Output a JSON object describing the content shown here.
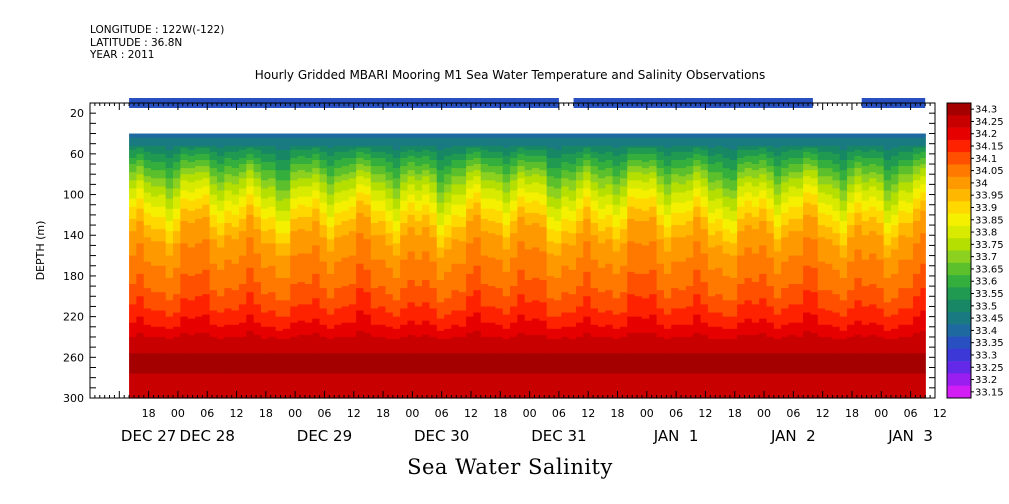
{
  "header": {
    "longitude": "LONGITUDE : 122W(-122)",
    "latitude": "LATITUDE : 36.8N",
    "year": "YEAR : 2011"
  },
  "chart_data": {
    "type": "heatmap",
    "title": "Hourly Gridded MBARI Mooring M1 Sea Water Temperature and Salinity Observations",
    "variable_label": "Sea Water Salinity",
    "ylabel": "DEPTH (m)",
    "ylim": [
      300,
      10
    ],
    "y_ticks": [
      20,
      60,
      100,
      140,
      180,
      220,
      260,
      300
    ],
    "x_range_hours": [
      -18,
      155
    ],
    "x_ticks": [
      {
        "h": -6,
        "label": "18"
      },
      {
        "h": 0,
        "label": "00"
      },
      {
        "h": 6,
        "label": "06"
      },
      {
        "h": 12,
        "label": "12"
      },
      {
        "h": 18,
        "label": "18"
      },
      {
        "h": 24,
        "label": "00"
      },
      {
        "h": 30,
        "label": "06"
      },
      {
        "h": 36,
        "label": "12"
      },
      {
        "h": 42,
        "label": "18"
      },
      {
        "h": 48,
        "label": "00"
      },
      {
        "h": 54,
        "label": "06"
      },
      {
        "h": 60,
        "label": "12"
      },
      {
        "h": 66,
        "label": "18"
      },
      {
        "h": 72,
        "label": "00"
      },
      {
        "h": 78,
        "label": "06"
      },
      {
        "h": 84,
        "label": "12"
      },
      {
        "h": 90,
        "label": "18"
      },
      {
        "h": 96,
        "label": "00"
      },
      {
        "h": 102,
        "label": "06"
      },
      {
        "h": 108,
        "label": "12"
      },
      {
        "h": 114,
        "label": "18"
      },
      {
        "h": 120,
        "label": "00"
      },
      {
        "h": 126,
        "label": "06"
      },
      {
        "h": 132,
        "label": "12"
      },
      {
        "h": 138,
        "label": "18"
      },
      {
        "h": 144,
        "label": "00"
      },
      {
        "h": 150,
        "label": "06"
      },
      {
        "h": 156,
        "label": "12"
      }
    ],
    "date_labels": [
      {
        "h": -6,
        "label": "DEC 27"
      },
      {
        "h": 6,
        "label": "DEC 28"
      },
      {
        "h": 30,
        "label": "DEC 29"
      },
      {
        "h": 54,
        "label": "DEC 30"
      },
      {
        "h": 78,
        "label": "DEC 31"
      },
      {
        "h": 102,
        "label": "JAN  1"
      },
      {
        "h": 126,
        "label": "JAN  2"
      },
      {
        "h": 150,
        "label": "JAN  3"
      }
    ],
    "data_x_range_hours": [
      -10,
      153
    ],
    "data_depth_range": [
      40,
      300
    ],
    "surface_bar": {
      "depth": 10,
      "segments": [
        [
          -10,
          78
        ],
        [
          81,
          130
        ],
        [
          140,
          153
        ]
      ]
    },
    "surface_value": 33.35,
    "layers": [
      {
        "depth": 40,
        "value": 33.4
      },
      {
        "depth": 60,
        "value": 33.55
      },
      {
        "depth": 90,
        "value": 33.75
      },
      {
        "depth": 120,
        "value": 33.9
      },
      {
        "depth": 145,
        "value": 34.0
      },
      {
        "depth": 180,
        "value": 34.05
      },
      {
        "depth": 220,
        "value": 34.15
      },
      {
        "depth": 245,
        "value": 34.25
      },
      {
        "depth": 265,
        "value": 34.3
      },
      {
        "depth": 285,
        "value": 34.25
      },
      {
        "depth": 300,
        "value": 34.25
      }
    ],
    "colorbar": {
      "levels": [
        "34.3",
        "34.25",
        "34.2",
        "34.15",
        "34.1",
        "34.05",
        "34",
        "33.95",
        "33.9",
        "33.85",
        "33.8",
        "33.75",
        "33.7",
        "33.65",
        "33.6",
        "33.55",
        "33.5",
        "33.45",
        "33.4",
        "33.35",
        "33.3",
        "33.25",
        "33.2",
        "33.15"
      ],
      "colors": [
        "#a50000",
        "#c80000",
        "#e60000",
        "#ff2200",
        "#ff5000",
        "#ff7800",
        "#ff9900",
        "#ffb700",
        "#ffd800",
        "#f5f000",
        "#d8ea00",
        "#b4df00",
        "#8cd020",
        "#5cc02c",
        "#34ae3c",
        "#209a50",
        "#178764",
        "#1a7a82",
        "#1e6aa0",
        "#2850c0",
        "#3c38d8",
        "#6428e8",
        "#9a1ef0",
        "#d21ef5"
      ]
    }
  }
}
